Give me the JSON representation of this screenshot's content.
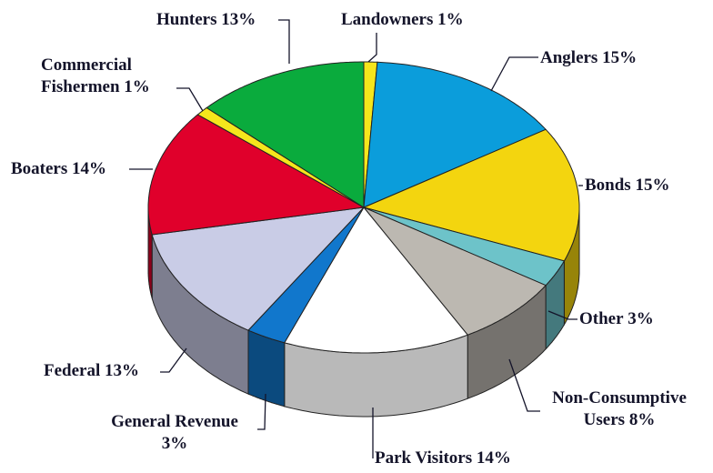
{
  "chart_data": {
    "type": "pie3d",
    "categories": [
      "Landowners",
      "Anglers",
      "Bonds",
      "Other",
      "Non-Consumptive Users",
      "Park Visitors",
      "General Revenue",
      "Federal",
      "Boaters",
      "Commercial Fishermen",
      "Hunters"
    ],
    "values": [
      1,
      15,
      15,
      3,
      8,
      14,
      3,
      13,
      14,
      1,
      13
    ],
    "value_labels": [
      "1%",
      "15%",
      "15%",
      "3%",
      "8%",
      "14%",
      "3%",
      "13%",
      "14%",
      "1%",
      "13%"
    ],
    "colors": [
      "#f5e61c",
      "#0b9ddb",
      "#f3d50f",
      "#6dc3c9",
      "#bcb8b1",
      "#ffffff",
      "#1177cc",
      "#c9cce6",
      "#e0002b",
      "#f5e61c",
      "#0aab3d"
    ]
  }
}
